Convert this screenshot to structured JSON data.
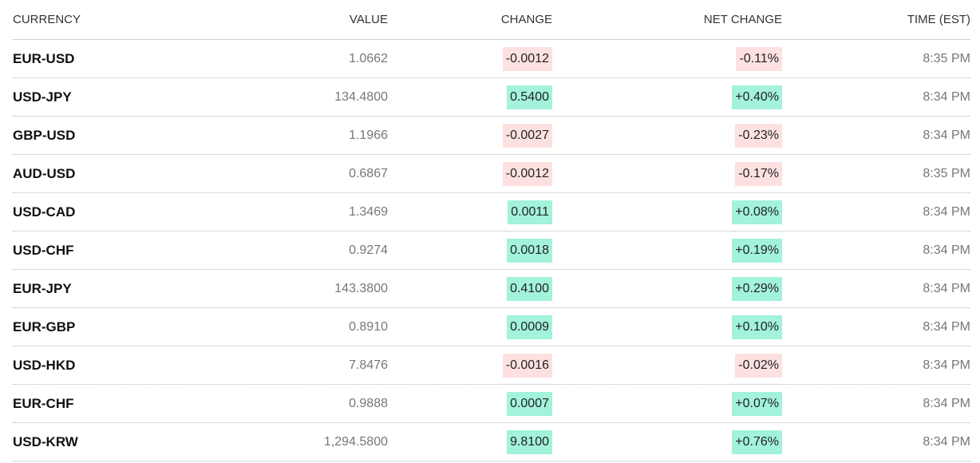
{
  "table": {
    "header": [
      "CURRENCY",
      "VALUE",
      "CHANGE",
      "NET CHANGE",
      "TIME (EST)"
    ],
    "rows": [
      [
        "EUR-USD",
        "1.0662",
        "-0.0012",
        "-0.11%",
        "8:35 PM"
      ],
      [
        "USD-JPY",
        "134.4800",
        "0.5400",
        "+0.40%",
        "8:34 PM"
      ],
      [
        "GBP-USD",
        "1.1966",
        "-0.0027",
        "-0.23%",
        "8:34 PM"
      ],
      [
        "AUD-USD",
        "0.6867",
        "-0.0012",
        "-0.17%",
        "8:35 PM"
      ],
      [
        "USD-CAD",
        "1.3469",
        "0.0011",
        "+0.08%",
        "8:34 PM"
      ],
      [
        "USD-CHF",
        "0.9274",
        "0.0018",
        "+0.19%",
        "8:34 PM"
      ],
      [
        "EUR-JPY",
        "143.3800",
        "0.4100",
        "+0.29%",
        "8:34 PM"
      ],
      [
        "EUR-GBP",
        "0.8910",
        "0.0009",
        "+0.10%",
        "8:34 PM"
      ],
      [
        "USD-HKD",
        "7.8476",
        "-0.0016",
        "-0.02%",
        "8:34 PM"
      ],
      [
        "EUR-CHF",
        "0.9888",
        "0.0007",
        "+0.07%",
        "8:34 PM"
      ],
      [
        "USD-KRW",
        "1,294.5800",
        "9.8100",
        "+0.76%",
        "8:34 PM"
      ]
    ]
  }
}
